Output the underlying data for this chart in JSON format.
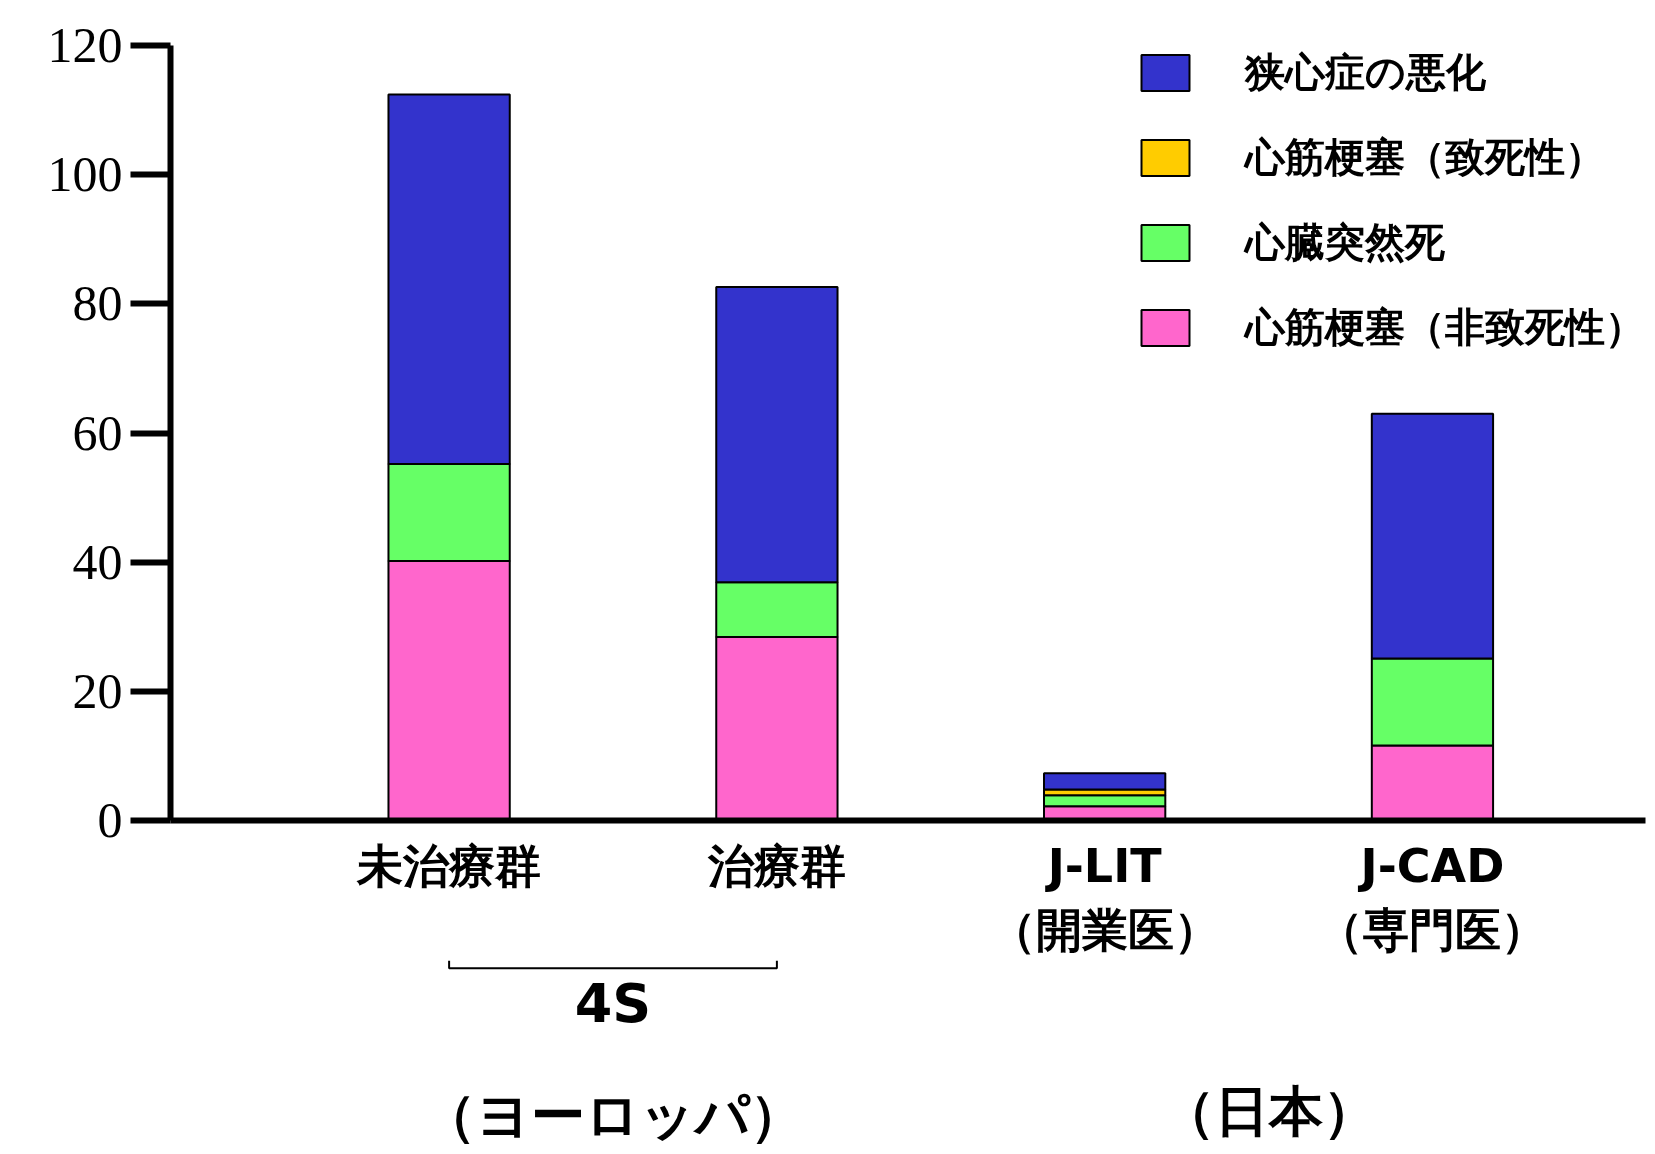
{
  "chart_data": {
    "type": "bar",
    "stacked": true,
    "categories": [
      "未治療群",
      "治療群",
      "J-LIT\n（開業医）",
      "J-CAD\n（専門医）"
    ],
    "series": [
      {
        "name": "心筋梗塞（非致死性）",
        "color": "#ff66cc",
        "values": [
          40.2,
          28.4,
          2.2,
          11.6
        ]
      },
      {
        "name": "心臓突然死",
        "color": "#66ff66",
        "values": [
          15,
          8.5,
          1.7,
          13.5
        ]
      },
      {
        "name": "心筋梗塞（致死性）",
        "color": "#ffcc00",
        "values": [
          null,
          null,
          0.9,
          null
        ]
      },
      {
        "name": "狭心症の悪化",
        "color": "#3333cc",
        "values": [
          57.2,
          45.7,
          2.5,
          37.9
        ]
      }
    ],
    "ylim": [
      0,
      120
    ],
    "yticks": [
      0,
      20,
      40,
      60,
      80,
      100,
      120
    ],
    "grid": false,
    "legend": "top right",
    "annotations": [
      "4S",
      "（ヨーロッパ）",
      "（日本）"
    ]
  }
}
